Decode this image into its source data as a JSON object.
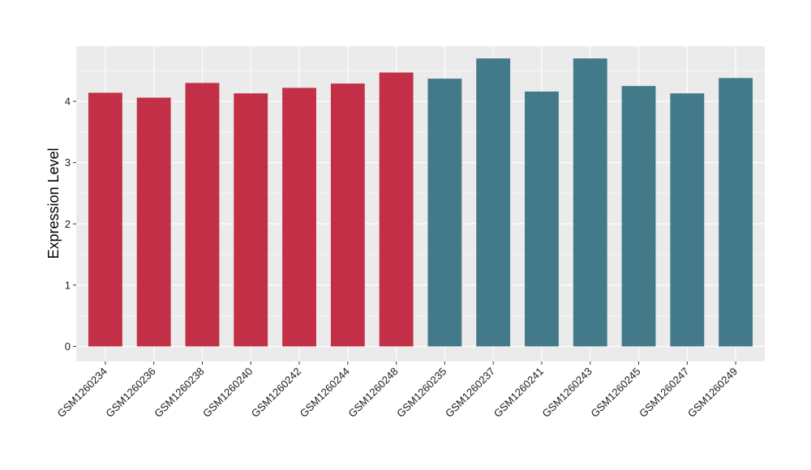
{
  "chart_data": {
    "type": "bar",
    "title": "",
    "xlabel": "",
    "ylabel": "Expression Level",
    "ylim": [
      0,
      4.9
    ],
    "yticks": [
      0,
      1,
      2,
      3,
      4
    ],
    "grid": true,
    "categories": [
      "GSM1260234",
      "GSM1260236",
      "GSM1260238",
      "GSM1260240",
      "GSM1260242",
      "GSM1260244",
      "GSM1260248",
      "GSM1260235",
      "GSM1260237",
      "GSM1260241",
      "GSM1260243",
      "GSM1260245",
      "GSM1260247",
      "GSM1260249"
    ],
    "values": [
      4.14,
      4.06,
      4.3,
      4.13,
      4.22,
      4.29,
      4.47,
      4.37,
      4.7,
      4.16,
      4.7,
      4.25,
      4.13,
      4.38
    ],
    "group_sizes": [
      7,
      7
    ],
    "group_colors": [
      "#c32f47",
      "#427a8a"
    ],
    "panel_background": "#ebebeb",
    "gridline_color": "#ffffff"
  }
}
